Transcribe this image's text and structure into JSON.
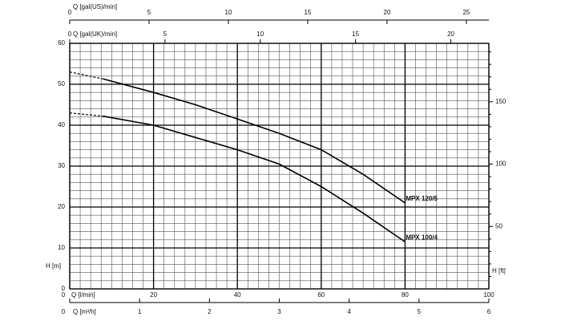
{
  "chart_data": {
    "type": "line",
    "x_label": "Q [l/min]",
    "y_label": "H [m]",
    "y2_label": "H [ft]",
    "xlim": [
      0,
      100
    ],
    "xticks": [
      0,
      20,
      40,
      60,
      80,
      100
    ],
    "ylim": [
      0,
      60
    ],
    "yticks": [
      0,
      10,
      20,
      30,
      40,
      50,
      60
    ],
    "y2lim": [
      0,
      196.85
    ],
    "y2ticks": [
      50,
      100,
      150
    ],
    "grid": true,
    "xgrid_minor_step": 2.5,
    "ygrid_minor_step": 2,
    "extra_x_axes": [
      {
        "label": "Q [gal(US)/min]",
        "position": "top",
        "lim": [
          0,
          26.417
        ],
        "ticks": [
          0,
          5,
          10,
          15,
          20,
          25
        ]
      },
      {
        "label": "Q [gal(UK)/min]",
        "position": "top-inner",
        "lim": [
          0,
          21.997
        ],
        "ticks": [
          0,
          5,
          10,
          15,
          20
        ]
      },
      {
        "label": "Q [m³/h]",
        "position": "bottom",
        "lim": [
          0,
          6
        ],
        "ticks": [
          0,
          1,
          2,
          3,
          4,
          5,
          6
        ]
      }
    ],
    "series": [
      {
        "name": "MPX 120/5",
        "color": "#000000",
        "dashed_segments": 1,
        "x": [
          0,
          8,
          20,
          30,
          40,
          50,
          60,
          70,
          80
        ],
        "values": [
          53,
          51.3,
          48,
          45,
          41.5,
          38,
          34,
          28,
          21
        ]
      },
      {
        "name": "MPX 100/4",
        "color": "#000000",
        "dashed_segments": 1,
        "x": [
          0,
          8,
          20,
          30,
          40,
          50,
          60,
          70,
          80
        ],
        "values": [
          43,
          42.2,
          40,
          37,
          34,
          30.5,
          25,
          18.5,
          11.5
        ]
      }
    ]
  }
}
